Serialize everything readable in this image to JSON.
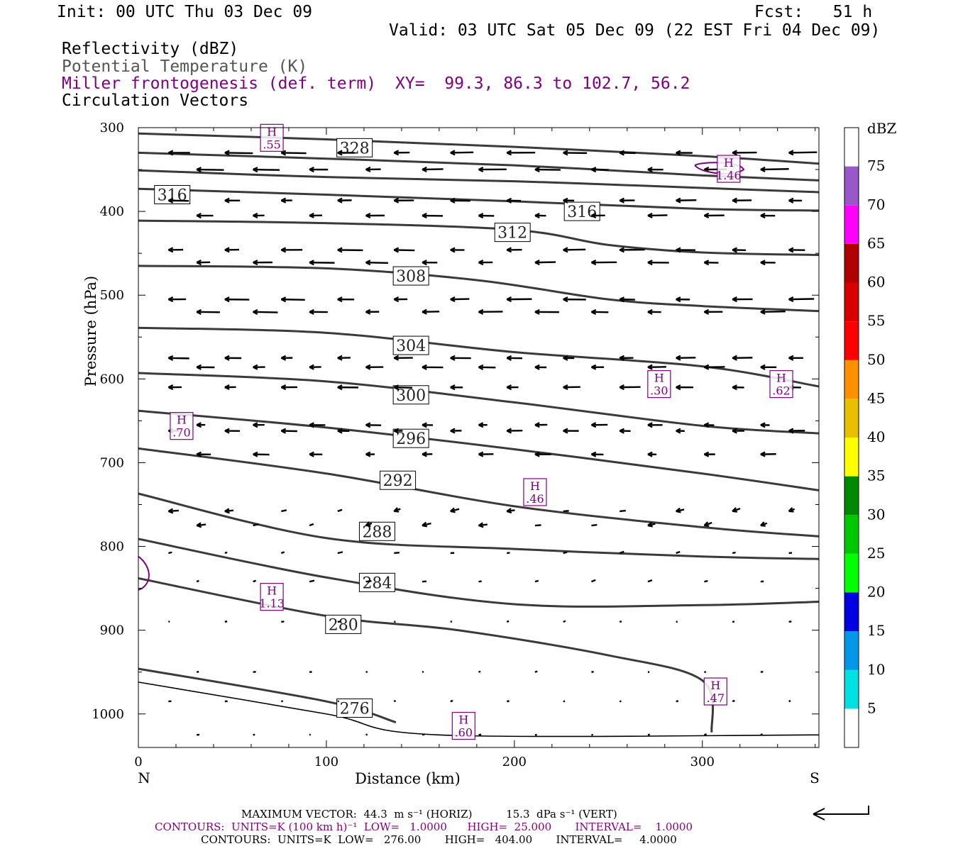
{
  "header": {
    "init": "Init: 00 UTC Thu 03 Dec 09",
    "fcst": "Fcst:   51 h",
    "valid": "Valid: 03 UTC Sat 05 Dec 09 (22 EST Fri 04 Dec 09)",
    "field1": "Reflectivity (dBZ)",
    "field2": "Potential Temperature (K)",
    "field3": "Miller frontogenesis (def. term)",
    "xy": "XY=  99.3, 86.3 to 102.7, 56.2",
    "field4": "Circulation Vectors"
  },
  "colors": {
    "purple": "#800080",
    "theta": "#3a3a3a"
  },
  "footer": {
    "max_vector": "MAXIMUM VECTOR:  44.3  m s⁻¹ (HORIZ)          15.3  dPa s⁻¹ (VERT)",
    "contours_fg": "CONTOURS:  UNITS=K (100 km h)⁻¹  LOW=   1.0000      HIGH=  25.000       INTERVAL=    1.0000",
    "contours_theta": "CONTOURS:  UNITS=K  LOW=   276.00       HIGH=   404.00       INTERVAL=     4.0000"
  },
  "chart_data": {
    "type": "cross-section",
    "xlabel": "Distance (km)",
    "ylabel": "Pressure (hPa)",
    "xlim": [
      0,
      362
    ],
    "ylim": [
      1040,
      300
    ],
    "x_ticks": [
      "0",
      "100",
      "200",
      "300"
    ],
    "y_ticks": [
      "300",
      "400",
      "500",
      "600",
      "700",
      "800",
      "900",
      "1000"
    ],
    "left_end_label": "N",
    "right_end_label": "S",
    "colorbar": {
      "title": "dBZ",
      "labels": [
        "5",
        "10",
        "15",
        "20",
        "25",
        "30",
        "35",
        "40",
        "45",
        "50",
        "55",
        "60",
        "65",
        "70",
        "75"
      ],
      "colors": [
        "#ffffff",
        "#00e0e0",
        "#0098e8",
        "#0000e0",
        "#00ff00",
        "#00c800",
        "#008800",
        "#ffff00",
        "#e8c000",
        "#ff9000",
        "#ff0000",
        "#d80000",
        "#b00000",
        "#ff00ff",
        "#9858c8",
        "#ffffff"
      ]
    },
    "theta_contours": [
      {
        "label": "328",
        "points": [
          [
            0,
            307
          ],
          [
            100,
            314
          ],
          [
            200,
            323
          ],
          [
            300,
            334
          ],
          [
            362,
            343
          ]
        ],
        "lx": 115,
        "ly": 324
      },
      {
        "label": null,
        "points": [
          [
            0,
            330
          ],
          [
            100,
            337
          ],
          [
            200,
            345
          ],
          [
            300,
            357
          ],
          [
            362,
            363
          ]
        ]
      },
      {
        "label": null,
        "points": [
          [
            0,
            351
          ],
          [
            100,
            359
          ],
          [
            200,
            364
          ],
          [
            300,
            372
          ],
          [
            362,
            377
          ]
        ]
      },
      {
        "label": "316",
        "points": [
          [
            0,
            373
          ],
          [
            100,
            380
          ],
          [
            200,
            388
          ],
          [
            300,
            397
          ],
          [
            362,
            399
          ]
        ],
        "lx": 18,
        "ly": 380
      },
      {
        "label": "316",
        "points": [],
        "lx": 236,
        "ly": 400
      },
      {
        "label": "312",
        "points": [
          [
            0,
            411
          ],
          [
            100,
            414
          ],
          [
            200,
            422
          ],
          [
            250,
            440
          ],
          [
            300,
            449
          ],
          [
            362,
            452
          ]
        ],
        "lx": 199,
        "ly": 425
      },
      {
        "label": "308",
        "points": [
          [
            0,
            465
          ],
          [
            100,
            468
          ],
          [
            180,
            482
          ],
          [
            250,
            505
          ],
          [
            300,
            513
          ],
          [
            362,
            519
          ]
        ],
        "lx": 145,
        "ly": 477
      },
      {
        "label": "304",
        "points": [
          [
            0,
            539
          ],
          [
            100,
            545
          ],
          [
            200,
            568
          ],
          [
            300,
            585
          ],
          [
            362,
            609
          ]
        ],
        "lx": 145,
        "ly": 560
      },
      {
        "label": "300",
        "points": [
          [
            0,
            593
          ],
          [
            100,
            603
          ],
          [
            200,
            628
          ],
          [
            300,
            656
          ],
          [
            362,
            665
          ]
        ],
        "lx": 145,
        "ly": 619
      },
      {
        "label": "296",
        "points": [
          [
            0,
            638
          ],
          [
            100,
            658
          ],
          [
            200,
            684
          ],
          [
            300,
            713
          ],
          [
            362,
            733
          ]
        ],
        "lx": 145,
        "ly": 671
      },
      {
        "label": "292",
        "points": [
          [
            0,
            683
          ],
          [
            100,
            713
          ],
          [
            200,
            752
          ],
          [
            300,
            777
          ],
          [
            362,
            788
          ]
        ],
        "lx": 138,
        "ly": 721
      },
      {
        "label": "288",
        "points": [
          [
            0,
            737
          ],
          [
            100,
            790
          ],
          [
            200,
            803
          ],
          [
            300,
            812
          ],
          [
            362,
            815
          ]
        ],
        "lx": 127,
        "ly": 782
      },
      {
        "label": "284",
        "points": [
          [
            0,
            791
          ],
          [
            100,
            837
          ],
          [
            200,
            869
          ],
          [
            300,
            870
          ],
          [
            362,
            866
          ]
        ],
        "lx": 127,
        "ly": 843
      },
      {
        "label": "280",
        "points": [
          [
            0,
            838
          ],
          [
            100,
            883
          ],
          [
            170,
            900
          ],
          [
            250,
            930
          ],
          [
            300,
            960
          ],
          [
            305,
            1022
          ]
        ],
        "lx": 109,
        "ly": 893
      },
      {
        "label": "276",
        "points": [
          [
            0,
            946
          ],
          [
            100,
            985
          ],
          [
            137,
            1010
          ]
        ],
        "lx": 115,
        "ly": 993
      }
    ],
    "terrain_pressure": [
      [
        0,
        962
      ],
      [
        100,
        1000
      ],
      [
        160,
        1025
      ],
      [
        362,
        1025
      ]
    ],
    "frontogenesis_maxima": [
      {
        "label": "H",
        "value": ".55",
        "x": 71,
        "p": 313
      },
      {
        "label": "H",
        "value": "1.46",
        "x": 314,
        "p": 350
      },
      {
        "label": "H",
        "value": ".30",
        "x": 277,
        "p": 607
      },
      {
        "label": "H",
        "value": ".62",
        "x": 342,
        "p": 607
      },
      {
        "label": "H",
        "value": ".70",
        "x": 23,
        "p": 657
      },
      {
        "label": "H",
        "value": ".46",
        "x": 211,
        "p": 736
      },
      {
        "label": "H",
        "value": "1.13",
        "x": 71,
        "p": 861
      },
      {
        "label": "H",
        "value": ".47",
        "x": 307,
        "p": 974
      },
      {
        "label": "H",
        "value": ".60",
        "x": 173,
        "p": 1015
      }
    ]
  }
}
